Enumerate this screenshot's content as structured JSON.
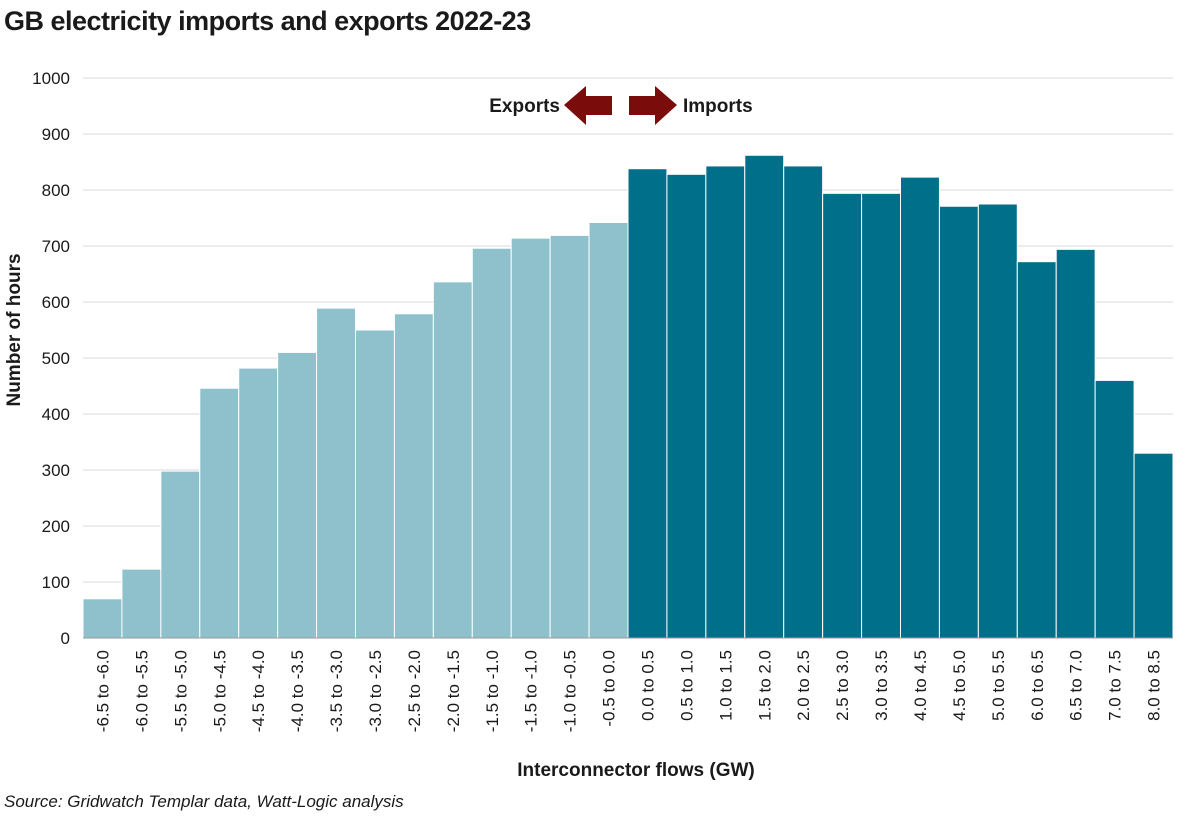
{
  "chart_data": {
    "type": "bar",
    "title": "GB electricity imports and exports 2022-23",
    "xlabel": "Interconnector flows (GW)",
    "ylabel": "Number of hours",
    "ylim": [
      0,
      1000
    ],
    "yticks": [
      "0",
      "100",
      "200",
      "300",
      "400",
      "500",
      "600",
      "700",
      "800",
      "900",
      "1000"
    ],
    "grid": true,
    "categories": [
      "-6.5 to -6.0",
      "-6.0 to -5.5",
      "-5.5 to -5.0",
      "-5.0 to -4.5",
      "-4.5 to -4.0",
      "-4.0 to -3.5",
      "-3.5 to -3.0",
      "-3.0 to -2.5",
      "-2.5 to -2.0",
      "-2.0 to -1.5",
      "-1.5 to -1.0",
      "-1.5 to -1.0",
      "-1.0 to -0.5",
      "-0.5 to 0.0",
      "0.0 to 0.5",
      "0.5 to 1.0",
      "1.0 to 1.5",
      "1.5 to 2.0",
      "2.0 to 2.5",
      "2.5 to 3.0",
      "3.0 to 3.5",
      "4.0 to 4.5",
      "4.5 to 5.0",
      "5.0 to 5.5",
      "6.0 to 6.5",
      "6.5 to 7.0",
      "7.0 to 7.5",
      "8.0 to 8.5"
    ],
    "values": [
      70,
      123,
      298,
      446,
      482,
      510,
      589,
      550,
      579,
      636,
      696,
      714,
      719,
      742,
      838,
      828,
      843,
      862,
      843,
      794,
      794,
      823,
      771,
      775,
      672,
      694,
      460,
      330
    ],
    "bar_colors": [
      "#8fc1cd",
      "#8fc1cd",
      "#8fc1cd",
      "#8fc1cd",
      "#8fc1cd",
      "#8fc1cd",
      "#8fc1cd",
      "#8fc1cd",
      "#8fc1cd",
      "#8fc1cd",
      "#8fc1cd",
      "#8fc1cd",
      "#8fc1cd",
      "#8fc1cd",
      "#00708a",
      "#00708a",
      "#00708a",
      "#00708a",
      "#00708a",
      "#00708a",
      "#00708a",
      "#00708a",
      "#00708a",
      "#00708a",
      "#00708a",
      "#00708a",
      "#00708a",
      "#00708a"
    ],
    "annotations": {
      "exports_label": "Exports",
      "imports_label": "Imports",
      "arrow_color": "#7a0c0c"
    },
    "source": "Source: Gridwatch Templar data, Watt-Logic analysis"
  }
}
